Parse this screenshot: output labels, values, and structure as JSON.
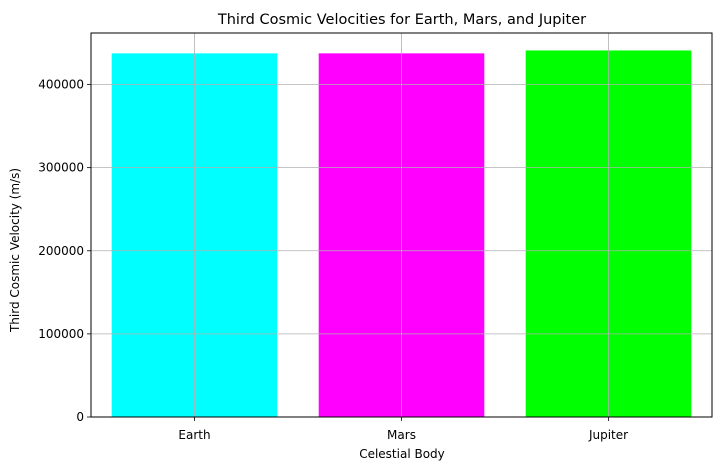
{
  "chart_data": {
    "type": "bar",
    "title": "Third Cosmic Velocities for Earth, Mars, and Jupiter",
    "xlabel": "Celestial Body",
    "ylabel": "Third Cosmic Velocity (m/s)",
    "categories": [
      "Earth",
      "Mars",
      "Jupiter"
    ],
    "values": [
      437500,
      437500,
      441000
    ],
    "colors": [
      "#00ffff",
      "#ff00ff",
      "#00ff00"
    ],
    "ylim": [
      0,
      462000
    ],
    "yticks": [
      0,
      100000,
      200000,
      300000,
      400000
    ],
    "ytick_labels": [
      "0",
      "100000",
      "200000",
      "300000",
      "400000"
    ],
    "grid": true,
    "legend": "none"
  }
}
